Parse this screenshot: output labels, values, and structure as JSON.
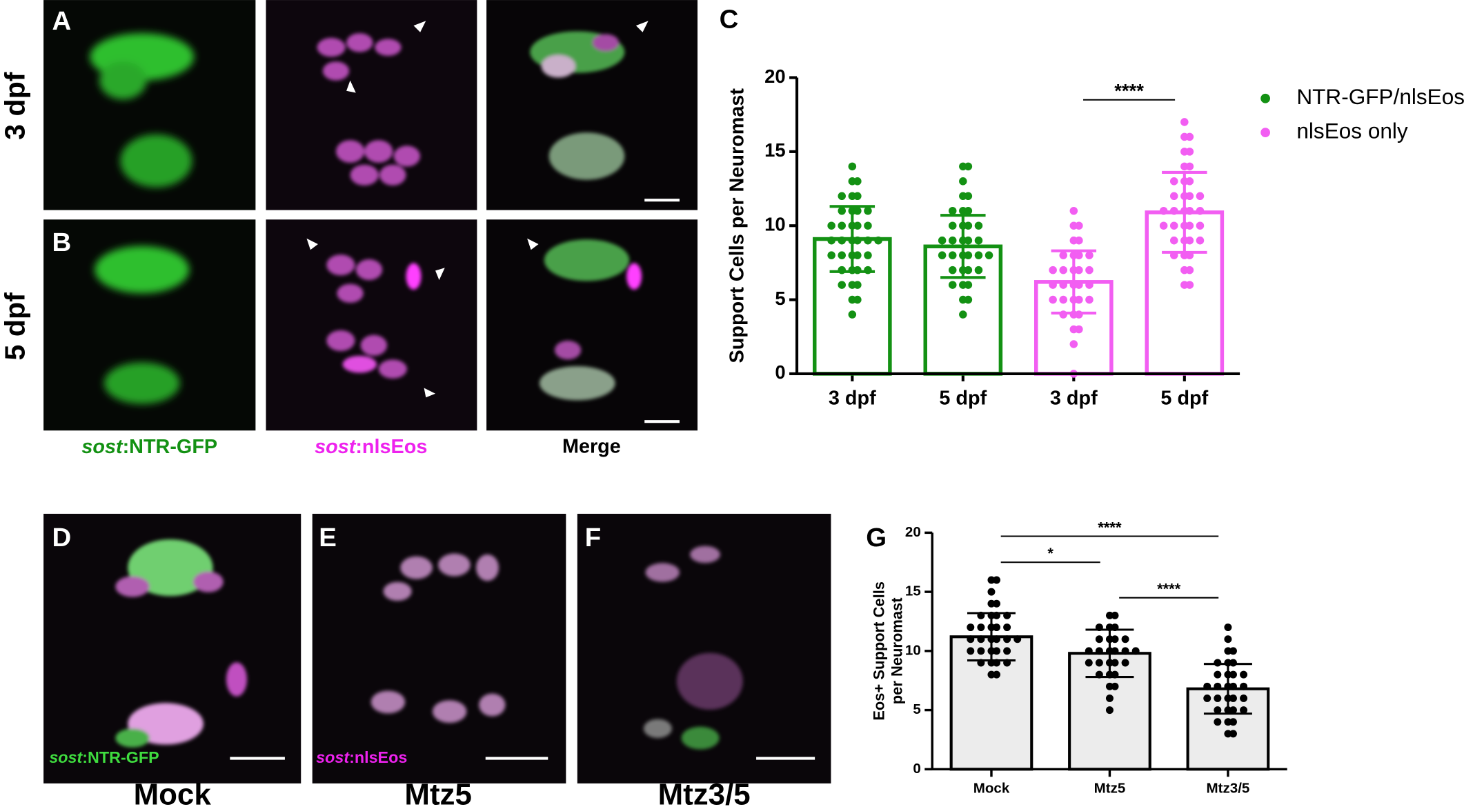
{
  "panel_letters": [
    "A",
    "B",
    "C",
    "D",
    "E",
    "F",
    "G"
  ],
  "row_labels": [
    "3 dpf",
    "5 dpf"
  ],
  "column_captions": [
    {
      "italic": "sost",
      "text": ":NTR-GFP"
    },
    {
      "italic": "sost",
      "text": ":nlsEos"
    },
    {
      "text": "Merge"
    }
  ],
  "inset_captions": [
    {
      "italic": "sost",
      "text": ":NTR-GFP"
    },
    {
      "italic": "sost",
      "text": ":nlsEos"
    }
  ],
  "bottom_captions": [
    "Mock",
    "Mtz5",
    "Mtz3/5"
  ],
  "chart_data": [
    {
      "type": "bar",
      "ylabel": "Support Cells per Neuromast",
      "categories": [
        "3 dpf",
        "5 dpf",
        "3 dpf",
        "5 dpf"
      ],
      "ylim": [
        0,
        20
      ],
      "yticks": [
        0,
        5,
        10,
        15,
        20
      ],
      "legend": "right",
      "series": [
        {
          "name": "NTR-GFP/nlsEos",
          "color": "#139113",
          "fill": "#ffffff",
          "values": [
            9.1,
            8.6,
            null,
            null
          ],
          "errors": [
            2.2,
            2.1,
            null,
            null
          ],
          "points": [
            [
              4,
              5,
              5,
              6,
              6,
              6,
              7,
              7,
              7,
              7,
              8,
              8,
              8,
              8,
              8,
              9,
              9,
              9,
              9,
              9,
              9,
              10,
              10,
              10,
              10,
              10,
              11,
              11,
              11,
              11,
              12,
              12,
              12,
              13,
              13,
              14
            ],
            [
              4,
              5,
              5,
              6,
              6,
              6,
              7,
              7,
              7,
              7,
              8,
              8,
              8,
              8,
              8,
              8,
              9,
              9,
              9,
              9,
              9,
              10,
              10,
              10,
              10,
              11,
              11,
              11,
              12,
              12,
              13,
              14,
              14
            ],
            null,
            null
          ]
        },
        {
          "name": "nlsEos only",
          "color": "#f25ef2",
          "fill": "#ffffff",
          "values": [
            null,
            null,
            6.2,
            10.9
          ],
          "errors": [
            null,
            null,
            2.1,
            2.7
          ],
          "points": [
            null,
            null,
            [
              0,
              2,
              3,
              3,
              4,
              4,
              4,
              5,
              5,
              5,
              5,
              5,
              6,
              6,
              6,
              6,
              6,
              7,
              7,
              7,
              7,
              7,
              8,
              8,
              8,
              8,
              9,
              9,
              10,
              10,
              11
            ],
            [
              6,
              6,
              7,
              7,
              8,
              8,
              8,
              9,
              9,
              9,
              9,
              10,
              10,
              10,
              10,
              10,
              11,
              11,
              11,
              11,
              11,
              12,
              12,
              12,
              12,
              13,
              13,
              13,
              14,
              14,
              15,
              15,
              16,
              16,
              17
            ]
          ]
        }
      ],
      "significance": [
        {
          "between": [
            2,
            3
          ],
          "label": "****"
        }
      ]
    },
    {
      "type": "bar",
      "ylabel": [
        "Eos+ Support Cells",
        "per Neuromast"
      ],
      "categories": [
        "Mock",
        "Mtz5",
        "Mtz3/5"
      ],
      "ylim": [
        0,
        20
      ],
      "yticks": [
        0,
        5,
        10,
        15,
        20
      ],
      "series": [
        {
          "color": "#000000",
          "fill": "#ececec",
          "values": [
            11.2,
            9.8,
            6.8
          ],
          "errors": [
            2.0,
            2.0,
            2.1
          ],
          "points": [
            [
              8,
              8,
              9,
              9,
              9,
              9,
              10,
              10,
              10,
              10,
              10,
              11,
              11,
              11,
              11,
              11,
              11,
              12,
              12,
              12,
              12,
              12,
              13,
              13,
              13,
              13,
              14,
              14,
              15,
              16,
              16
            ],
            [
              5,
              6,
              7,
              7,
              8,
              8,
              8,
              9,
              9,
              9,
              9,
              9,
              10,
              10,
              10,
              10,
              10,
              10,
              11,
              11,
              11,
              11,
              12,
              12,
              12,
              13,
              13
            ],
            [
              3,
              3,
              4,
              4,
              4,
              5,
              5,
              5,
              5,
              6,
              6,
              6,
              6,
              6,
              7,
              7,
              7,
              7,
              7,
              8,
              8,
              8,
              8,
              9,
              9,
              9,
              10,
              10,
              11,
              12
            ]
          ]
        }
      ],
      "significance": [
        {
          "between": [
            0,
            1
          ],
          "label": "*"
        },
        {
          "between": [
            0,
            2
          ],
          "label": "****"
        },
        {
          "between": [
            1,
            2
          ],
          "label": "****"
        }
      ]
    }
  ]
}
